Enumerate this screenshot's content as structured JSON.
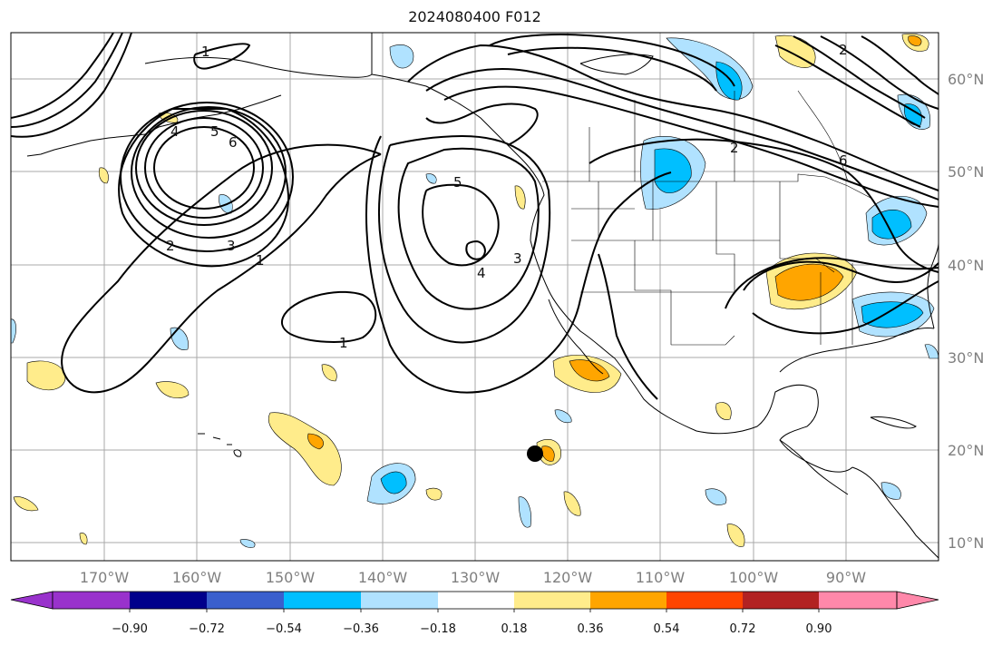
{
  "title": "2024080400 F012",
  "lon_labels": [
    "170°W",
    "160°W",
    "150°W",
    "140°W",
    "130°W",
    "120°W",
    "110°W",
    "100°W",
    "90°W"
  ],
  "lat_labels": [
    "60°N",
    "50°N",
    "40°N",
    "30°N",
    "20°N",
    "10°N"
  ],
  "colorbar": {
    "ticks": [
      "−0.90",
      "−0.72",
      "−0.54",
      "−0.36",
      "−0.18",
      "0.18",
      "0.36",
      "0.54",
      "0.72",
      "0.90"
    ],
    "colors": [
      "#9932cc",
      "#00008b",
      "#3a5fcd",
      "#00bfff",
      "#b0e2ff",
      "#ffffff",
      "#ffec8b",
      "#ffa500",
      "#ff4500",
      "#b22222",
      "#ff88aa"
    ]
  },
  "contour_labels": [
    "1",
    "1",
    "1",
    "2",
    "2",
    "2",
    "3",
    "3",
    "4",
    "4",
    "5",
    "5",
    "6",
    "6"
  ],
  "colors": {
    "land": "#ffffff",
    "grid": "#a9a9a9",
    "contour": "#000000"
  }
}
